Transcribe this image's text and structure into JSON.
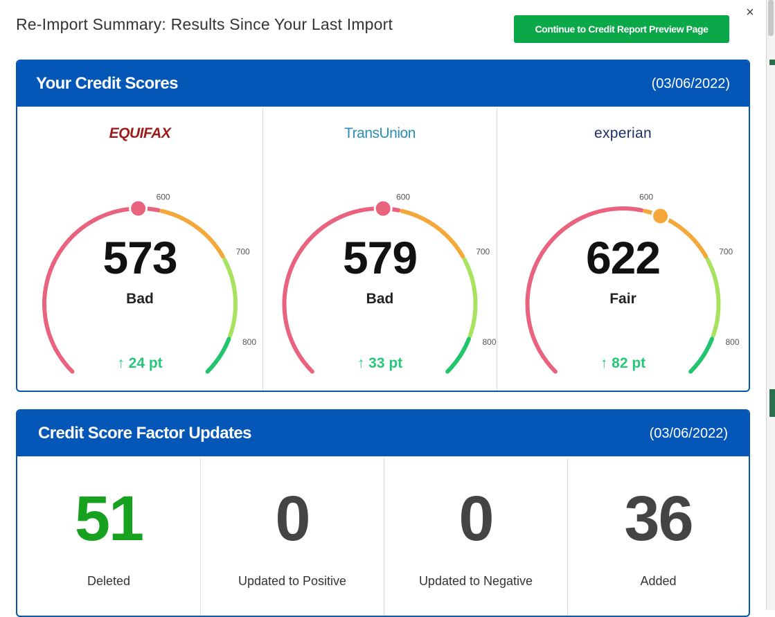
{
  "modal": {
    "title": "Re-Import Summary: Results Since Your Last Import",
    "continue_label": "Continue to Credit Report Preview Page",
    "close_symbol": "×"
  },
  "scores_panel": {
    "title": "Your Credit Scores",
    "date": "(03/06/2022)",
    "bureaus": [
      {
        "name": "EQUIFAX",
        "score": "573",
        "score_value": 573,
        "rating": "Bad",
        "change": "24 pt",
        "marker_color": "#e9637f"
      },
      {
        "name": "TransUnion",
        "score": "579",
        "score_value": 579,
        "rating": "Bad",
        "change": "33 pt",
        "marker_color": "#e9637f"
      },
      {
        "name": "experian",
        "score": "622",
        "score_value": 622,
        "rating": "Fair",
        "change": "82 pt",
        "marker_color": "#f5a83a"
      }
    ],
    "gauge_ticks": [
      "600",
      "700",
      "800"
    ],
    "change_arrow": "↑"
  },
  "factors_panel": {
    "title": "Credit Score Factor Updates",
    "date": "(03/06/2022)",
    "items": [
      {
        "value": "51",
        "label": "Deleted"
      },
      {
        "value": "0",
        "label": "Updated to Positive"
      },
      {
        "value": "0",
        "label": "Updated to Negative"
      },
      {
        "value": "36",
        "label": "Added"
      }
    ]
  },
  "colors": {
    "header_blue": "#0457b7",
    "button_green": "#0ba84a",
    "bad_pink": "#e9637f",
    "fair_orange": "#f5a83a",
    "good_lightgreen": "#a8e35f",
    "excellent_green": "#22c46e",
    "change_green": "#27c77a"
  }
}
